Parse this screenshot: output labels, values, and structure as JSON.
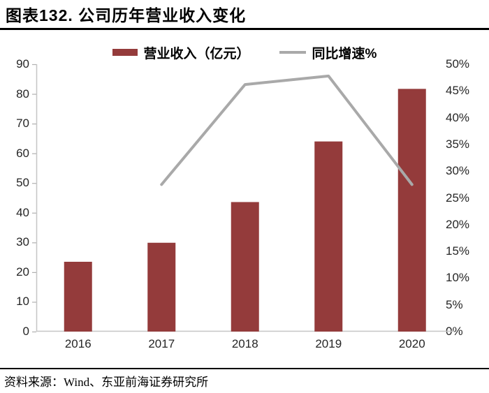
{
  "header": {
    "title": "图表132. 公司历年营业收入变化"
  },
  "footer": {
    "source": "资料来源：Wind、东亚前海证券研究所"
  },
  "palette": {
    "bar": "#943B3B",
    "line": "#A9A9A9",
    "axis_line": "#C6C6C6",
    "tick_mark": "#B0B0B0",
    "label": "#262626",
    "rule": "#000000"
  },
  "chart_data": {
    "type": "bar",
    "subtype": "combo-bar-line",
    "title": "公司历年营业收入变化",
    "categories": [
      "2016",
      "2017",
      "2018",
      "2019",
      "2020"
    ],
    "series": [
      {
        "name": "营业收入（亿元）",
        "type": "bar",
        "axis": "left",
        "color": "#943B3B",
        "values": [
          23.5,
          29.9,
          43.6,
          64.0,
          81.7
        ]
      },
      {
        "name": "同比增速%",
        "type": "line",
        "axis": "right",
        "color": "#A9A9A9",
        "values": [
          null,
          27.5,
          46.2,
          47.8,
          27.5
        ]
      }
    ],
    "left_axis": {
      "min": 0,
      "max": 90,
      "ticks": [
        0,
        10,
        20,
        30,
        40,
        50,
        60,
        70,
        80,
        90
      ]
    },
    "right_axis": {
      "min": 0,
      "max": 50,
      "ticks": [
        "0%",
        "5%",
        "10%",
        "15%",
        "20%",
        "25%",
        "30%",
        "35%",
        "40%",
        "45%",
        "50%"
      ]
    },
    "grid": false,
    "legend_position": "top-center"
  }
}
